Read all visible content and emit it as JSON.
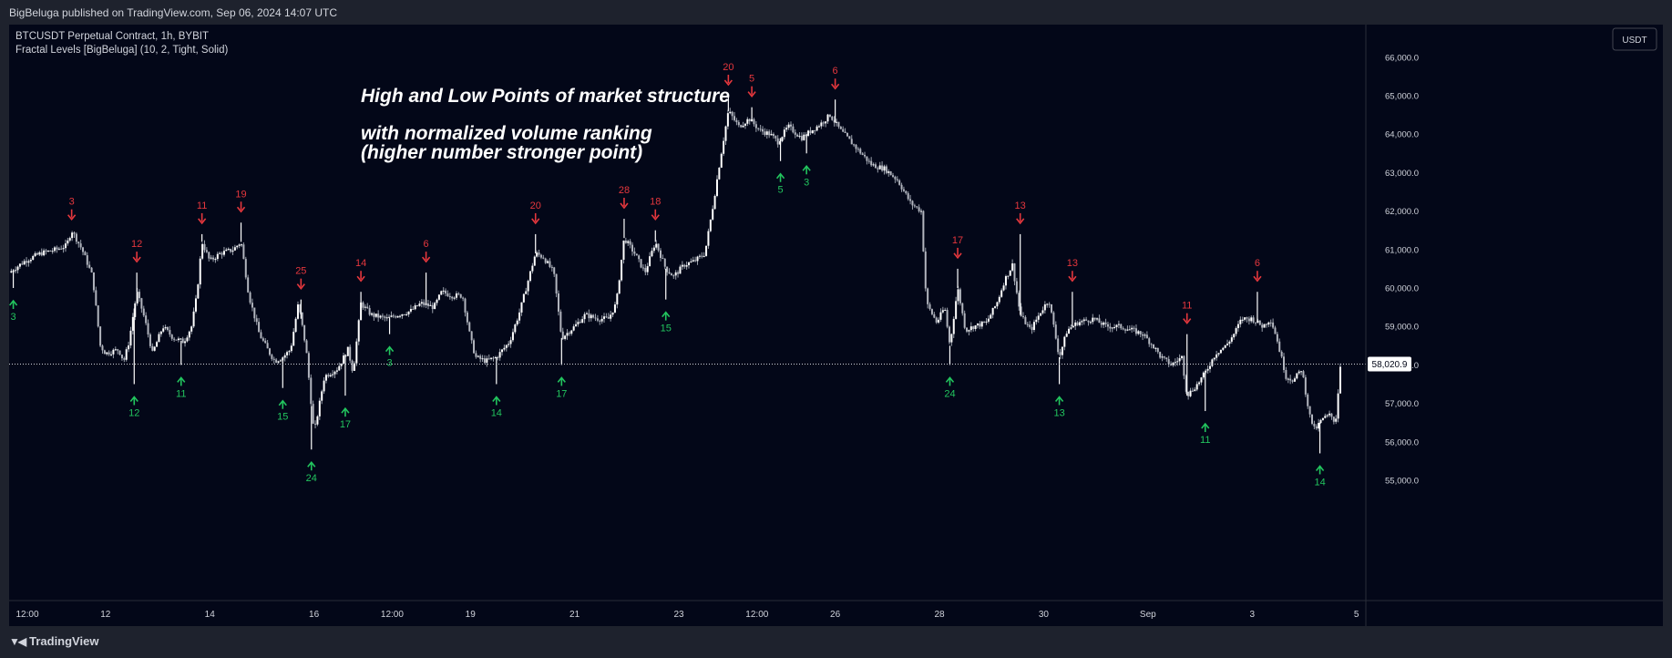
{
  "header": {
    "published": "BigBeluga published on TradingView.com, Sep 06, 2024 14:07 UTC"
  },
  "legend": {
    "symbol": "BTCUSDT Perpetual Contract, 1h, BYBIT",
    "indicator": "Fractal Levels [BigBeluga] (10, 2, Tight, Solid)"
  },
  "currency_button": "USDT",
  "annotation": [
    "High and Low Points of market structure",
    "with normalized volume ranking",
    "(higher number stronger point)"
  ],
  "footer": {
    "logo_text": "TradingView",
    "logo_icon": "tradingview-logo-icon"
  },
  "colors": {
    "background": "#030718",
    "frame": "#1e222d",
    "candle": "#ffffff",
    "high_marker": "#e5373d",
    "low_marker": "#22c55e",
    "text": "#d1d4dc"
  },
  "chart_data": {
    "type": "candlestick",
    "title": "",
    "xlabel": "",
    "ylabel": "",
    "ylim": [
      54400,
      66600
    ],
    "y_ticks": [
      {
        "value": 55000,
        "label": "55,000.0"
      },
      {
        "value": 56000,
        "label": "56,000.0"
      },
      {
        "value": 57000,
        "label": "57,000.0"
      },
      {
        "value": 58000,
        "label": "58,000.0"
      },
      {
        "value": 59000,
        "label": "59,000.0"
      },
      {
        "value": 60000,
        "label": "60,000.0"
      },
      {
        "value": 61000,
        "label": "61,000.0"
      },
      {
        "value": 62000,
        "label": "62,000.0"
      },
      {
        "value": 63000,
        "label": "63,000.0"
      },
      {
        "value": 64000,
        "label": "64,000.0"
      },
      {
        "value": 65000,
        "label": "65,000.0"
      },
      {
        "value": 66000,
        "label": "66,000.0"
      }
    ],
    "x_range": [
      0,
      25.55
    ],
    "x_ticks": [
      {
        "t": 0.35,
        "label": "12:00"
      },
      {
        "t": 1.85,
        "label": "12"
      },
      {
        "t": 3.85,
        "label": "14"
      },
      {
        "t": 5.85,
        "label": "16"
      },
      {
        "t": 7.35,
        "label": "12:00"
      },
      {
        "t": 8.85,
        "label": "19"
      },
      {
        "t": 10.85,
        "label": "21"
      },
      {
        "t": 12.85,
        "label": "23"
      },
      {
        "t": 14.35,
        "label": "12:00"
      },
      {
        "t": 15.85,
        "label": "26"
      },
      {
        "t": 17.85,
        "label": "28"
      },
      {
        "t": 19.85,
        "label": "30"
      },
      {
        "t": 21.85,
        "label": "Sep"
      },
      {
        "t": 23.85,
        "label": "3"
      },
      {
        "t": 25.85,
        "label": "5"
      }
    ],
    "last_price": 58020.9,
    "last_price_label": "58,020.9",
    "path": [
      [
        0,
        60400
      ],
      [
        0.3,
        60700
      ],
      [
        0.6,
        60900
      ],
      [
        0.9,
        61000
      ],
      [
        1.1,
        61100
      ],
      [
        1.2,
        61500
      ],
      [
        1.4,
        61000
      ],
      [
        1.6,
        60300
      ],
      [
        1.75,
        58500
      ],
      [
        1.85,
        58300
      ],
      [
        2.1,
        58400
      ],
      [
        2.2,
        58100
      ],
      [
        2.3,
        58600
      ],
      [
        2.45,
        59900
      ],
      [
        2.6,
        59200
      ],
      [
        2.75,
        58300
      ],
      [
        2.95,
        59000
      ],
      [
        3.15,
        58700
      ],
      [
        3.35,
        58600
      ],
      [
        3.5,
        59000
      ],
      [
        3.6,
        59800
      ],
      [
        3.7,
        61200
      ],
      [
        3.85,
        60700
      ],
      [
        4.05,
        60900
      ],
      [
        4.3,
        61000
      ],
      [
        4.45,
        61200
      ],
      [
        4.6,
        59800
      ],
      [
        4.8,
        58800
      ],
      [
        5.0,
        58300
      ],
      [
        5.1,
        58100
      ],
      [
        5.25,
        58200
      ],
      [
        5.4,
        58400
      ],
      [
        5.55,
        59600
      ],
      [
        5.7,
        58400
      ],
      [
        5.85,
        56200
      ],
      [
        6.05,
        57700
      ],
      [
        6.3,
        57900
      ],
      [
        6.5,
        58400
      ],
      [
        6.6,
        57800
      ],
      [
        6.75,
        59600
      ],
      [
        6.95,
        59300
      ],
      [
        7.25,
        59200
      ],
      [
        7.45,
        59300
      ],
      [
        7.7,
        59400
      ],
      [
        7.9,
        59600
      ],
      [
        8.15,
        59500
      ],
      [
        8.3,
        59900
      ],
      [
        8.5,
        59800
      ],
      [
        8.7,
        59800
      ],
      [
        8.85,
        58700
      ],
      [
        8.95,
        58200
      ],
      [
        9.15,
        58100
      ],
      [
        9.35,
        58200
      ],
      [
        9.6,
        58600
      ],
      [
        9.8,
        59400
      ],
      [
        10.0,
        60400
      ],
      [
        10.1,
        60900
      ],
      [
        10.25,
        60800
      ],
      [
        10.45,
        60400
      ],
      [
        10.6,
        58700
      ],
      [
        10.85,
        59000
      ],
      [
        11.05,
        59300
      ],
      [
        11.3,
        59200
      ],
      [
        11.5,
        59200
      ],
      [
        11.65,
        59600
      ],
      [
        11.8,
        61300
      ],
      [
        12.0,
        60900
      ],
      [
        12.2,
        60400
      ],
      [
        12.4,
        61200
      ],
      [
        12.6,
        60500
      ],
      [
        12.75,
        60300
      ],
      [
        12.95,
        60600
      ],
      [
        13.15,
        60700
      ],
      [
        13.35,
        60900
      ],
      [
        13.5,
        62100
      ],
      [
        13.65,
        63400
      ],
      [
        13.8,
        64600
      ],
      [
        14.0,
        64200
      ],
      [
        14.2,
        64400
      ],
      [
        14.4,
        64100
      ],
      [
        14.6,
        64000
      ],
      [
        14.75,
        63800
      ],
      [
        14.95,
        64200
      ],
      [
        15.2,
        63900
      ],
      [
        15.4,
        64100
      ],
      [
        15.6,
        64300
      ],
      [
        15.75,
        64500
      ],
      [
        15.95,
        64100
      ],
      [
        16.15,
        63800
      ],
      [
        16.35,
        63500
      ],
      [
        16.55,
        63200
      ],
      [
        16.8,
        63100
      ],
      [
        17.05,
        62800
      ],
      [
        17.3,
        62200
      ],
      [
        17.5,
        62000
      ],
      [
        17.6,
        59600
      ],
      [
        17.8,
        59100
      ],
      [
        17.95,
        59500
      ],
      [
        18.05,
        58500
      ],
      [
        18.2,
        60000
      ],
      [
        18.35,
        58900
      ],
      [
        18.5,
        59000
      ],
      [
        18.75,
        59100
      ],
      [
        18.95,
        59600
      ],
      [
        19.1,
        60200
      ],
      [
        19.25,
        60600
      ],
      [
        19.4,
        59300
      ],
      [
        19.6,
        58900
      ],
      [
        19.8,
        59400
      ],
      [
        19.95,
        59700
      ],
      [
        20.15,
        58200
      ],
      [
        20.3,
        58900
      ],
      [
        20.5,
        59100
      ],
      [
        20.8,
        59200
      ],
      [
        21.05,
        59000
      ],
      [
        21.3,
        59000
      ],
      [
        21.55,
        58900
      ],
      [
        21.75,
        58800
      ],
      [
        21.95,
        58500
      ],
      [
        22.1,
        58200
      ],
      [
        22.3,
        58000
      ],
      [
        22.5,
        58200
      ],
      [
        22.6,
        57200
      ],
      [
        22.8,
        57500
      ],
      [
        22.95,
        57800
      ],
      [
        23.15,
        58300
      ],
      [
        23.35,
        58500
      ],
      [
        23.5,
        58800
      ],
      [
        23.65,
        59200
      ],
      [
        23.85,
        59200
      ],
      [
        24.05,
        59000
      ],
      [
        24.2,
        59200
      ],
      [
        24.3,
        58800
      ],
      [
        24.5,
        57700
      ],
      [
        24.65,
        57600
      ],
      [
        24.8,
        57900
      ],
      [
        24.95,
        56700
      ],
      [
        25.05,
        56300
      ],
      [
        25.2,
        56600
      ],
      [
        25.35,
        56700
      ],
      [
        25.45,
        56500
      ],
      [
        25.55,
        58100
      ]
    ],
    "fractal_highs": [
      {
        "t": 1.2,
        "price": 61500,
        "rank": 3
      },
      {
        "t": 2.45,
        "price": 60400,
        "rank": 12
      },
      {
        "t": 3.7,
        "price": 61400,
        "rank": 11
      },
      {
        "t": 4.45,
        "price": 61700,
        "rank": 19
      },
      {
        "t": 5.6,
        "price": 59700,
        "rank": 25
      },
      {
        "t": 6.75,
        "price": 59900,
        "rank": 14
      },
      {
        "t": 8.0,
        "price": 60400,
        "rank": 6
      },
      {
        "t": 10.1,
        "price": 61400,
        "rank": 20
      },
      {
        "t": 11.8,
        "price": 61800,
        "rank": 28
      },
      {
        "t": 12.4,
        "price": 61500,
        "rank": 18
      },
      {
        "t": 13.8,
        "price": 65000,
        "rank": 20
      },
      {
        "t": 14.25,
        "price": 64700,
        "rank": 5
      },
      {
        "t": 15.85,
        "price": 64900,
        "rank": 6
      },
      {
        "t": 18.2,
        "price": 60500,
        "rank": 17
      },
      {
        "t": 19.4,
        "price": 61400,
        "rank": 13
      },
      {
        "t": 20.4,
        "price": 59900,
        "rank": 13
      },
      {
        "t": 22.6,
        "price": 58800,
        "rank": 11
      },
      {
        "t": 23.95,
        "price": 59900,
        "rank": 6
      }
    ],
    "fractal_lows": [
      {
        "t": 0.08,
        "price": 60000,
        "rank": 3
      },
      {
        "t": 2.4,
        "price": 57500,
        "rank": 12
      },
      {
        "t": 3.3,
        "price": 58000,
        "rank": 11
      },
      {
        "t": 5.25,
        "price": 57400,
        "rank": 15
      },
      {
        "t": 5.8,
        "price": 55800,
        "rank": 24
      },
      {
        "t": 6.45,
        "price": 57200,
        "rank": 17
      },
      {
        "t": 7.3,
        "price": 58800,
        "rank": 3
      },
      {
        "t": 9.35,
        "price": 57500,
        "rank": 14
      },
      {
        "t": 10.6,
        "price": 58000,
        "rank": 17
      },
      {
        "t": 12.6,
        "price": 59700,
        "rank": 15
      },
      {
        "t": 14.8,
        "price": 63300,
        "rank": 5
      },
      {
        "t": 15.3,
        "price": 63500,
        "rank": 3
      },
      {
        "t": 18.05,
        "price": 58000,
        "rank": 24
      },
      {
        "t": 20.15,
        "price": 57500,
        "rank": 13
      },
      {
        "t": 22.95,
        "price": 56800,
        "rank": 11
      },
      {
        "t": 25.15,
        "price": 55700,
        "rank": 14
      }
    ]
  }
}
